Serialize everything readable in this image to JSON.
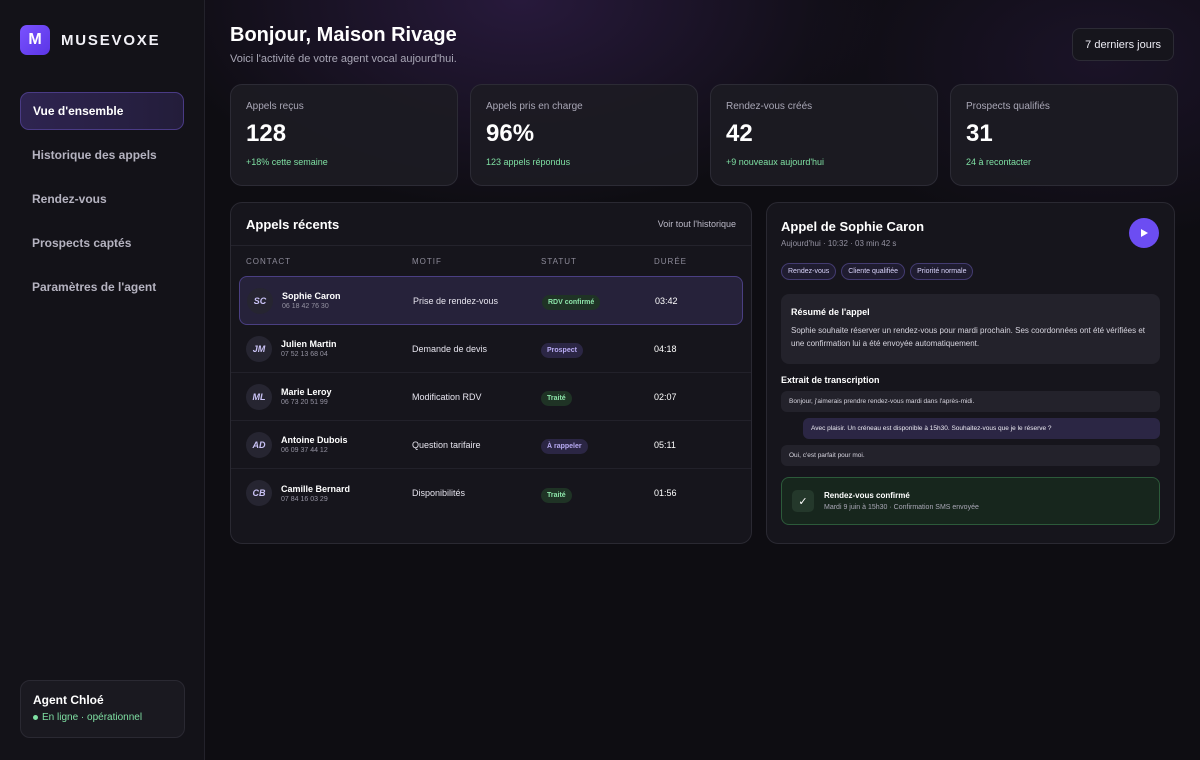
{
  "brand": {
    "logo_letter": "M",
    "name": "MUSEVOXE"
  },
  "sidebar": {
    "items": [
      {
        "label": "Vue d'ensemble",
        "active": true
      },
      {
        "label": "Historique des appels"
      },
      {
        "label": "Rendez-vous"
      },
      {
        "label": "Prospects captés"
      },
      {
        "label": "Paramètres de l'agent"
      }
    ],
    "agent": {
      "name": "Agent Chloé",
      "status": "En ligne · opérationnel"
    }
  },
  "header": {
    "title": "Bonjour, Maison Rivage",
    "subtitle": "Voici l'activité de votre agent vocal aujourd'hui.",
    "period_button": "7 derniers jours"
  },
  "stats": [
    {
      "label": "Appels reçus",
      "value": "128",
      "sub": "+18% cette semaine",
      "sub_color": "green"
    },
    {
      "label": "Appels pris en charge",
      "value": "96%",
      "sub": "123 appels répondus",
      "sub_color": "green"
    },
    {
      "label": "Rendez-vous créés",
      "value": "42",
      "sub": "+9 nouveaux aujourd'hui",
      "sub_color": "green"
    },
    {
      "label": "Prospects qualifiés",
      "value": "31",
      "sub": "24 à recontacter",
      "sub_color": "green"
    }
  ],
  "calls": {
    "title": "Appels récents",
    "link": "Voir tout l'historique",
    "columns": [
      "CONTACT",
      "MOTIF",
      "STATUT",
      "DURÉE"
    ],
    "rows": [
      {
        "initials": "SC",
        "name": "Sophie Caron",
        "phone": "06 18 42 76 30",
        "motif": "Prise de rendez-vous",
        "status": "RDV confirmé",
        "status_type": "green",
        "duration": "03:42",
        "selected": true
      },
      {
        "initials": "JM",
        "name": "Julien Martin",
        "phone": "07 52 13 68 04",
        "motif": "Demande de devis",
        "status": "Prospect",
        "status_type": "purple",
        "duration": "04:18"
      },
      {
        "initials": "ML",
        "name": "Marie Leroy",
        "phone": "06 73 20 51 99",
        "motif": "Modification RDV",
        "status": "Traité",
        "status_type": "green",
        "duration": "02:07"
      },
      {
        "initials": "AD",
        "name": "Antoine Dubois",
        "phone": "06 09 37 44 12",
        "motif": "Question tarifaire",
        "status": "À rappeler",
        "status_type": "purple",
        "duration": "05:11"
      },
      {
        "initials": "CB",
        "name": "Camille Bernard",
        "phone": "07 84 16 03 29",
        "motif": "Disponibilités",
        "status": "Traité",
        "status_type": "green",
        "duration": "01:56"
      }
    ]
  },
  "detail": {
    "title": "Appel de Sophie Caron",
    "meta": "Aujourd'hui · 10:32 · 03 min 42 s",
    "tags": [
      "Rendez-vous",
      "Cliente qualifiée",
      "Priorité normale"
    ],
    "summary_title": "Résumé de l'appel",
    "summary_text": "Sophie souhaite réserver un rendez-vous pour mardi prochain. Ses coordonnées ont été vérifiées et une confirmation lui a été envoyée automatiquement.",
    "transcript_title": "Extrait de transcription",
    "transcript": [
      {
        "side": "left",
        "text": "Bonjour, j'aimerais prendre rendez-vous mardi dans l'après-midi."
      },
      {
        "side": "right",
        "text": "Avec plaisir. Un créneau est disponible à 15h30. Souhaitez-vous que je le réserve ?"
      },
      {
        "side": "left",
        "text": "Oui, c'est parfait pour moi."
      }
    ],
    "confirm_title": "Rendez-vous confirmé",
    "confirm_sub": "Mardi 9 juin à 15h30 · Confirmation SMS envoyée",
    "check": "✓"
  },
  "colors": {
    "accent": "#6c4df2",
    "success": "#7fe0a3",
    "badge_purple": "#b9acf5"
  }
}
